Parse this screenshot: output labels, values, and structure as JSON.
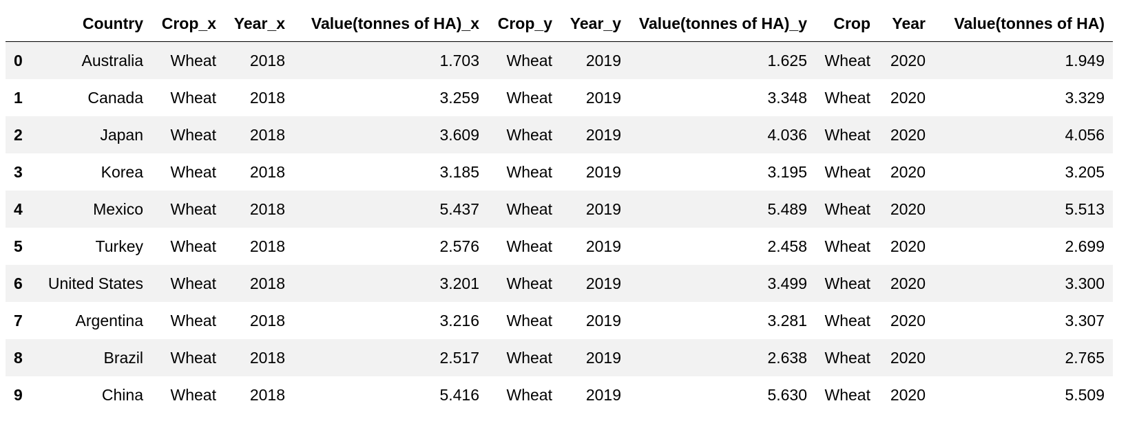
{
  "table": {
    "columns": [
      "",
      "Country",
      "Crop_x",
      "Year_x",
      "Value(tonnes of HA)_x",
      "Crop_y",
      "Year_y",
      "Value(tonnes of HA)_y",
      "Crop",
      "Year",
      "Value(tonnes of HA)"
    ],
    "rows": [
      [
        "0",
        "Australia",
        "Wheat",
        "2018",
        "1.703",
        "Wheat",
        "2019",
        "1.625",
        "Wheat",
        "2020",
        "1.949"
      ],
      [
        "1",
        "Canada",
        "Wheat",
        "2018",
        "3.259",
        "Wheat",
        "2019",
        "3.348",
        "Wheat",
        "2020",
        "3.329"
      ],
      [
        "2",
        "Japan",
        "Wheat",
        "2018",
        "3.609",
        "Wheat",
        "2019",
        "4.036",
        "Wheat",
        "2020",
        "4.056"
      ],
      [
        "3",
        "Korea",
        "Wheat",
        "2018",
        "3.185",
        "Wheat",
        "2019",
        "3.195",
        "Wheat",
        "2020",
        "3.205"
      ],
      [
        "4",
        "Mexico",
        "Wheat",
        "2018",
        "5.437",
        "Wheat",
        "2019",
        "5.489",
        "Wheat",
        "2020",
        "5.513"
      ],
      [
        "5",
        "Turkey",
        "Wheat",
        "2018",
        "2.576",
        "Wheat",
        "2019",
        "2.458",
        "Wheat",
        "2020",
        "2.699"
      ],
      [
        "6",
        "United States",
        "Wheat",
        "2018",
        "3.201",
        "Wheat",
        "2019",
        "3.499",
        "Wheat",
        "2020",
        "3.300"
      ],
      [
        "7",
        "Argentina",
        "Wheat",
        "2018",
        "3.216",
        "Wheat",
        "2019",
        "3.281",
        "Wheat",
        "2020",
        "3.307"
      ],
      [
        "8",
        "Brazil",
        "Wheat",
        "2018",
        "2.517",
        "Wheat",
        "2019",
        "2.638",
        "Wheat",
        "2020",
        "2.765"
      ],
      [
        "9",
        "China",
        "Wheat",
        "2018",
        "5.416",
        "Wheat",
        "2019",
        "5.630",
        "Wheat",
        "2020",
        "5.509"
      ]
    ]
  }
}
